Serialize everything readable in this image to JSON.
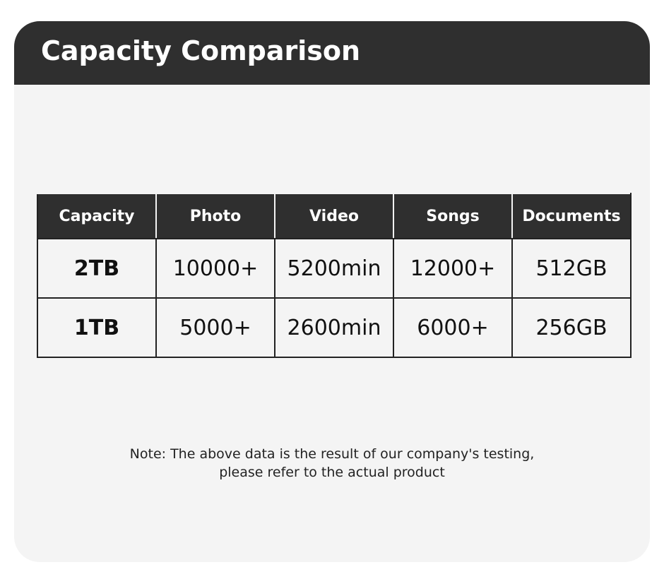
{
  "header": {
    "title": "Capacity Comparison"
  },
  "table": {
    "columns": [
      "Capacity",
      "Photo",
      "Video",
      "Songs",
      "Documents"
    ],
    "rows": [
      [
        "2TB",
        "10000+",
        "5200min",
        "12000+",
        "512GB"
      ],
      [
        "1TB",
        "5000+",
        "2600min",
        "6000+",
        "256GB"
      ]
    ]
  },
  "note": {
    "lines": [
      "Note: The above data is the result of our company's testing,",
      "please refer to the actual product"
    ]
  }
}
